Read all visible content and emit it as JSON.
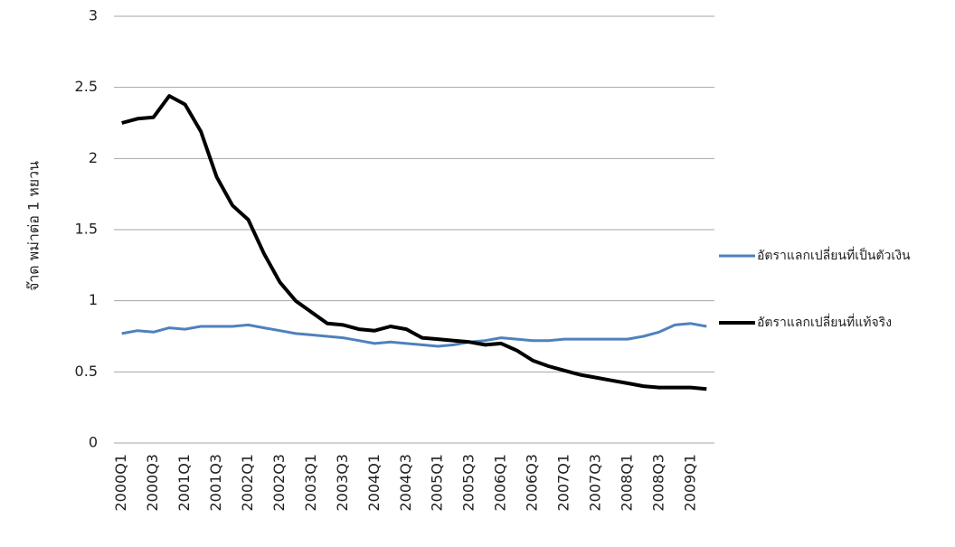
{
  "chart_data": {
    "type": "line",
    "y_label": "จ๊าด พม่าต่อ 1 หยวน",
    "categories": [
      "2000Q1",
      null,
      "2000Q3",
      null,
      "2001Q1",
      null,
      "2001Q3",
      null,
      "2002Q1",
      null,
      "2002Q3",
      null,
      "2003Q1",
      null,
      "2003Q3",
      null,
      "2004Q1",
      null,
      "2004Q3",
      null,
      "2005Q1",
      null,
      "2005Q3",
      null,
      "2006Q1",
      null,
      "2006Q3",
      null,
      "2007Q1",
      null,
      "2007Q3",
      null,
      "2008Q1",
      null,
      "2008Q3",
      null,
      "2009Q1",
      null
    ],
    "series": [
      {
        "name": "อัตราแลกเปลี่ยนที่เป็นตัวเงิน",
        "color": "#4f81bd",
        "values": [
          0.77,
          0.79,
          0.78,
          0.81,
          0.8,
          0.82,
          0.82,
          0.82,
          0.83,
          0.81,
          0.79,
          0.77,
          0.76,
          0.75,
          0.74,
          0.72,
          0.7,
          0.71,
          0.7,
          0.69,
          0.68,
          0.69,
          0.71,
          0.72,
          0.74,
          0.73,
          0.72,
          0.72,
          0.73,
          0.73,
          0.73,
          0.73,
          0.73,
          0.75,
          0.78,
          0.83,
          0.84,
          0.82
        ]
      },
      {
        "name": "อัตราแลกเปลี่ยนที่แท้จริง",
        "color": "#000000",
        "values": [
          2.25,
          2.28,
          2.29,
          2.44,
          2.38,
          2.19,
          1.87,
          1.67,
          1.57,
          1.33,
          1.13,
          1.0,
          0.92,
          0.84,
          0.83,
          0.8,
          0.79,
          0.82,
          0.8,
          0.74,
          0.73,
          0.72,
          0.71,
          0.69,
          0.7,
          0.65,
          0.58,
          0.54,
          0.51,
          0.48,
          0.46,
          0.44,
          0.42,
          0.4,
          0.39,
          0.39,
          0.39,
          0.38
        ]
      }
    ],
    "ylim": [
      0,
      3
    ],
    "yticks": [
      0,
      0.5,
      1,
      1.5,
      2,
      2.5,
      3
    ],
    "grid": true,
    "legend": "right"
  }
}
